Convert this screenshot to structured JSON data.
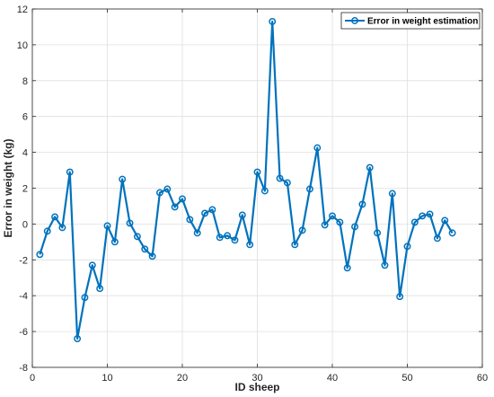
{
  "chart_data": {
    "type": "line",
    "xlabel": "ID sheep",
    "ylabel": "Error in weight (kg)",
    "xlim": [
      0,
      60
    ],
    "ylim": [
      -8,
      12
    ],
    "xticks": [
      0,
      10,
      20,
      30,
      40,
      50,
      60
    ],
    "yticks": [
      -8,
      -6,
      -4,
      -2,
      0,
      2,
      4,
      6,
      8,
      10,
      12
    ],
    "grid": true,
    "legend_position": "top-right",
    "series": [
      {
        "name": "Error in weight estimation",
        "color": "#0072BD",
        "marker": "circle",
        "x": [
          1,
          2,
          3,
          4,
          5,
          6,
          7,
          8,
          9,
          10,
          11,
          12,
          13,
          14,
          15,
          16,
          17,
          18,
          19,
          20,
          21,
          22,
          23,
          24,
          25,
          26,
          27,
          28,
          29,
          30,
          31,
          32,
          33,
          34,
          35,
          36,
          37,
          38,
          39,
          40,
          41,
          42,
          43,
          44,
          45,
          46,
          47,
          48,
          49,
          50,
          51,
          52,
          53,
          54,
          55,
          56
        ],
        "y": [
          -1.7,
          -0.4,
          0.4,
          -0.2,
          2.9,
          -6.4,
          -4.1,
          -2.3,
          -3.6,
          -0.1,
          -1.0,
          2.5,
          0.05,
          -0.7,
          -1.4,
          -1.8,
          1.75,
          1.95,
          0.95,
          1.4,
          0.25,
          -0.5,
          0.6,
          0.8,
          -0.75,
          -0.65,
          -0.9,
          0.5,
          -1.15,
          2.9,
          1.85,
          11.3,
          2.55,
          2.3,
          -1.15,
          -0.35,
          1.95,
          4.25,
          -0.05,
          0.45,
          0.1,
          -2.45,
          -0.15,
          1.1,
          3.15,
          -0.5,
          -2.3,
          1.7,
          -4.05,
          -1.25,
          0.1,
          0.45,
          0.55,
          -0.8,
          0.2,
          -0.5
        ]
      }
    ]
  }
}
